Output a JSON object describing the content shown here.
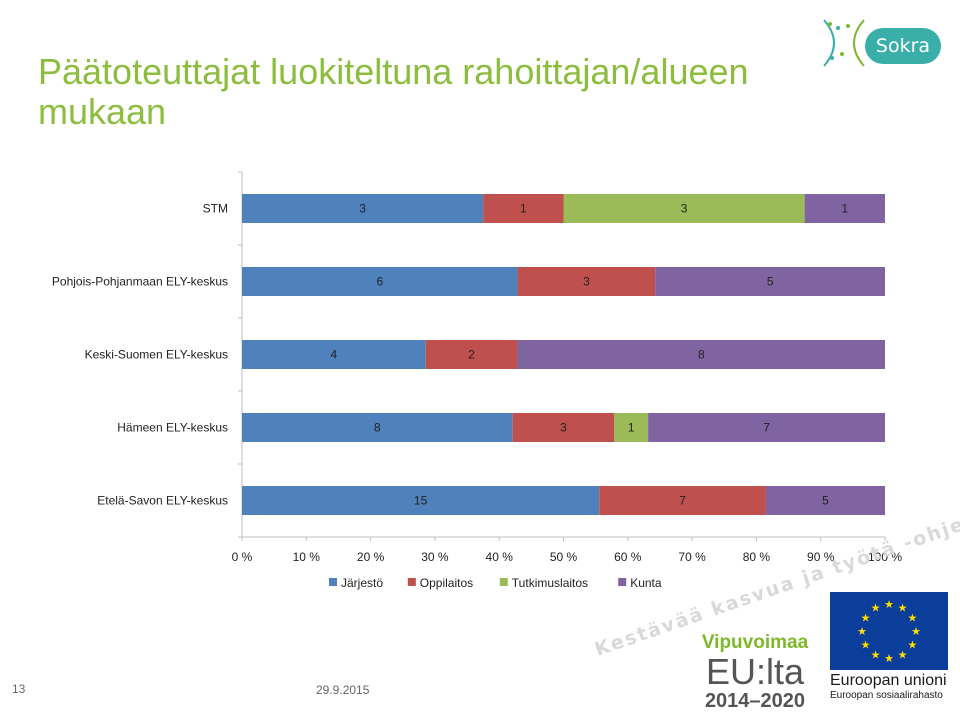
{
  "slide": {
    "title_lines": [
      "Päätoteuttajat luokiteltuna rahoittajan/alueen",
      "mukaan"
    ],
    "page_number": "13",
    "date": "29.9.2015"
  },
  "logos": {
    "sokra": "Sokra",
    "slogan": "Kestävää kasvua ja työtä -ohjelma",
    "vipuvoimaa_name": "Vipuvoimaa",
    "vipuvoimaa_eu": "EU:lta",
    "vipuvoimaa_years": "2014–2020",
    "eu_name": "Euroopan unioni",
    "eu_sub": "Euroopan sosiaalirahasto"
  },
  "colors": {
    "title": "#8cbd3f",
    "Järjestö": "#4f81bd",
    "Oppilaitos": "#c0504d",
    "Tutkimuslaitos": "#9bbb59",
    "Kunta": "#8064a2"
  },
  "chart_data": {
    "type": "bar",
    "orientation": "horizontal",
    "stacking": "percent",
    "categories": [
      "STM",
      "Pohjois-Pohjanmaan ELY-keskus",
      "Keski-Suomen ELY-keskus",
      "Hämeen ELY-keskus",
      "Etelä-Savon ELY-keskus"
    ],
    "series": [
      {
        "name": "Järjestö",
        "values": [
          3,
          6,
          4,
          8,
          15
        ]
      },
      {
        "name": "Oppilaitos",
        "values": [
          1,
          3,
          2,
          3,
          7
        ]
      },
      {
        "name": "Tutkimuslaitos",
        "values": [
          3,
          0,
          0,
          1,
          0
        ]
      },
      {
        "name": "Kunta",
        "values": [
          1,
          5,
          8,
          7,
          5
        ]
      }
    ],
    "x_ticks": [
      "0 %",
      "10 %",
      "20 %",
      "30 %",
      "40 %",
      "50 %",
      "60 %",
      "70 %",
      "80 %",
      "90 %",
      "100 %"
    ],
    "xlim": [
      0,
      100
    ],
    "legend_position": "bottom",
    "grid": false
  }
}
